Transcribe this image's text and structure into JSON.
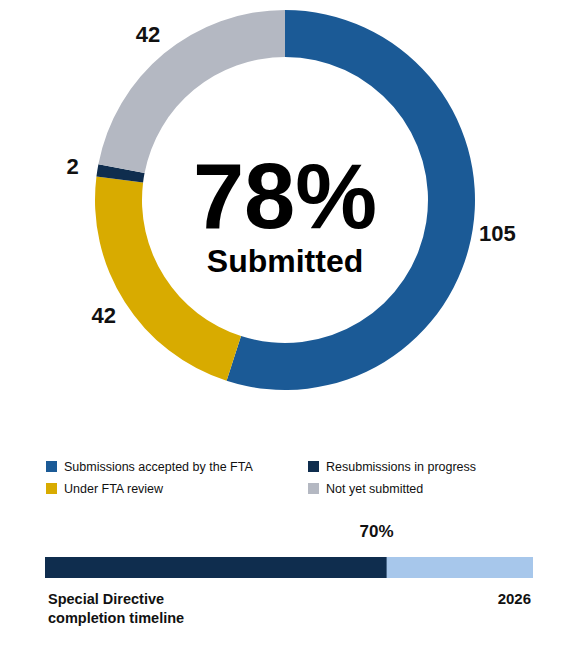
{
  "chart_data": [
    {
      "type": "donut",
      "categories": [
        "Submissions accepted by the FTA",
        "Under FTA review",
        "Resubmissions in progress",
        "Not yet submitted"
      ],
      "values": [
        105,
        42,
        2,
        42
      ],
      "colors": [
        "#1b5a96",
        "#d8ab00",
        "#0f2d4e",
        "#b4b8c2"
      ],
      "data_labels": true,
      "legend": "bottom",
      "annotations": [
        {
          "value": 78,
          "label": "78%"
        },
        {
          "text": "Submitted"
        }
      ]
    },
    {
      "type": "progress",
      "title": "Special Directive completion timeline",
      "values": [
        70
      ],
      "value_labels": [
        "70%"
      ],
      "xlim": [
        0,
        100
      ],
      "color": "#0f2d4e",
      "data_labels": true,
      "tick_labels": false,
      "annotations": [
        {
          "text": "2026"
        }
      ]
    }
  ]
}
